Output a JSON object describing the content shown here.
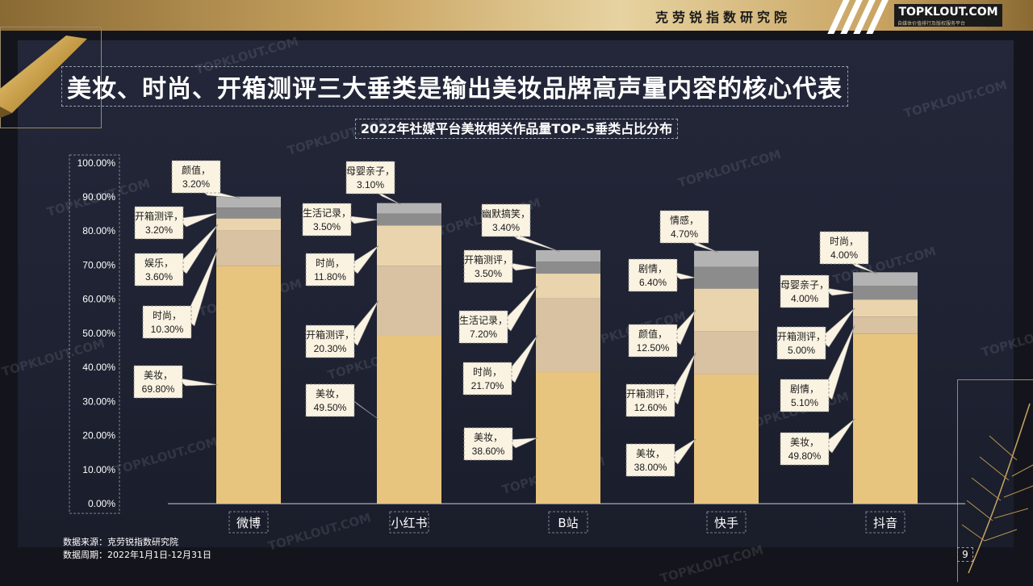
{
  "header": {
    "institute": "克劳锐指数研究院",
    "brand": "TOPKLOUT.COM",
    "brand_subtitle": "自媒体价值排行及版权服务平台",
    "brand_cn": "克劳锐"
  },
  "headline": "美妆、时尚、开箱测评三大垂类是输出美妆品牌高声量内容的核心代表",
  "watermark": "TOPKLOUT.COM",
  "chart_data": {
    "type": "bar",
    "stacked": true,
    "title": "2022年社媒平台美妆相关作品量TOP-5垂类占比分布",
    "categories": [
      "微博",
      "小红书",
      "B站",
      "快手",
      "抖音"
    ],
    "ylim": [
      0,
      100
    ],
    "yticks": [
      "0.00%",
      "10.00%",
      "20.00%",
      "30.00%",
      "40.00%",
      "50.00%",
      "60.00%",
      "70.00%",
      "80.00%",
      "90.00%",
      "100.00%"
    ],
    "grid": false,
    "legend": "none",
    "segment_colors": [
      "#e8c57e",
      "#d8c2a2",
      "#e9d4ad",
      "#8c8c8c",
      "#b3b3b3"
    ],
    "stacks": [
      {
        "category": "微博",
        "segments": [
          {
            "label": "美妆",
            "value": 69.8,
            "text": "69.80%"
          },
          {
            "label": "时尚",
            "value": 10.3,
            "text": "10.30%"
          },
          {
            "label": "娱乐",
            "value": 3.6,
            "text": "3.60%"
          },
          {
            "label": "开箱测评",
            "value": 3.2,
            "text": "3.20%"
          },
          {
            "label": "颜值",
            "value": 3.2,
            "text": "3.20%"
          }
        ]
      },
      {
        "category": "小红书",
        "segments": [
          {
            "label": "美妆",
            "value": 49.5,
            "text": "49.50%"
          },
          {
            "label": "开箱测评",
            "value": 20.3,
            "text": "20.30%"
          },
          {
            "label": "时尚",
            "value": 11.8,
            "text": "11.80%"
          },
          {
            "label": "生活记录",
            "value": 3.5,
            "text": "3.50%"
          },
          {
            "label": "母婴亲子",
            "value": 3.1,
            "text": "3.10%"
          }
        ]
      },
      {
        "category": "B站",
        "segments": [
          {
            "label": "美妆",
            "value": 38.6,
            "text": "38.60%"
          },
          {
            "label": "时尚",
            "value": 21.7,
            "text": "21.70%"
          },
          {
            "label": "生活记录",
            "value": 7.2,
            "text": "7.20%"
          },
          {
            "label": "开箱测评",
            "value": 3.5,
            "text": "3.50%"
          },
          {
            "label": "幽默搞笑",
            "value": 3.4,
            "text": "3.40%"
          }
        ]
      },
      {
        "category": "快手",
        "segments": [
          {
            "label": "美妆",
            "value": 38.0,
            "text": "38.00%"
          },
          {
            "label": "开箱测评",
            "value": 12.6,
            "text": "12.60%"
          },
          {
            "label": "颜值",
            "value": 12.5,
            "text": "12.50%"
          },
          {
            "label": "剧情",
            "value": 6.4,
            "text": "6.40%"
          },
          {
            "label": "情感",
            "value": 4.7,
            "text": "4.70%"
          }
        ]
      },
      {
        "category": "抖音",
        "segments": [
          {
            "label": "美妆",
            "value": 49.8,
            "text": "49.80%"
          },
          {
            "label": "剧情",
            "value": 5.1,
            "text": "5.10%"
          },
          {
            "label": "开箱测评",
            "value": 5.0,
            "text": "5.00%"
          },
          {
            "label": "母婴亲子",
            "value": 4.0,
            "text": "4.00%"
          },
          {
            "label": "时尚",
            "value": 4.0,
            "text": "4.00%"
          }
        ]
      }
    ]
  },
  "footer": {
    "source": "数据来源：克劳锐指数研究院",
    "period": "数据周期：2022年1月1日-12月31日"
  },
  "page_number": "9"
}
